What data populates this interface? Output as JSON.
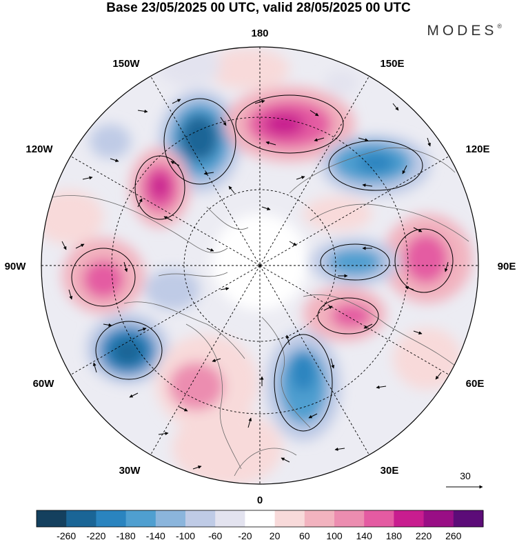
{
  "title": "Base 23/05/2025 00 UTC, valid 28/05/2025 00 UTC",
  "brand": "MODES",
  "brand_mark": "®",
  "longitude_labels": {
    "deg180": "180",
    "w150": "150W",
    "e150": "150E",
    "w120": "120W",
    "e120": "120E",
    "w90": "90W",
    "e90": "90E",
    "w60": "60W",
    "e60": "60E",
    "w30": "30W",
    "e30": "30E",
    "deg0": "0"
  },
  "reference_vector": {
    "label": "30"
  },
  "colorbar": {
    "colors": [
      "#14405e",
      "#1a6596",
      "#2a84bf",
      "#4f9fd0",
      "#8bb5dc",
      "#bfcbe6",
      "#e3e3ef",
      "#ffffff",
      "#f8dada",
      "#f2b3bf",
      "#ec8db0",
      "#e45ba2",
      "#c81d8f",
      "#990e85",
      "#5c0c78"
    ],
    "labels": [
      "-260",
      "-220",
      "-180",
      "-140",
      "-100",
      "-60",
      "-20",
      "20",
      "60",
      "100",
      "140",
      "180",
      "220",
      "260"
    ]
  },
  "anomaly_centers": [
    {
      "lon_label": "150W/180",
      "sign": "negative",
      "value": -260
    },
    {
      "lon_label": "180",
      "sign": "positive",
      "value": 220
    },
    {
      "lon_label": "120E",
      "sign": "negative",
      "value": -180
    },
    {
      "lon_label": "120W",
      "sign": "positive",
      "value": 220
    },
    {
      "lon_label": "90W",
      "sign": "positive",
      "value": 180
    },
    {
      "lon_label": "90E",
      "sign": "positive",
      "value": 180
    },
    {
      "lon_label": "90E inner",
      "sign": "negative",
      "value": -140
    },
    {
      "lon_label": "60E inner",
      "sign": "positive",
      "value": 140
    },
    {
      "lon_label": "60W",
      "sign": "negative",
      "value": -220
    },
    {
      "lon_label": "30W",
      "sign": "positive",
      "value": 140
    },
    {
      "lon_label": "30E",
      "sign": "negative",
      "value": -180
    }
  ]
}
